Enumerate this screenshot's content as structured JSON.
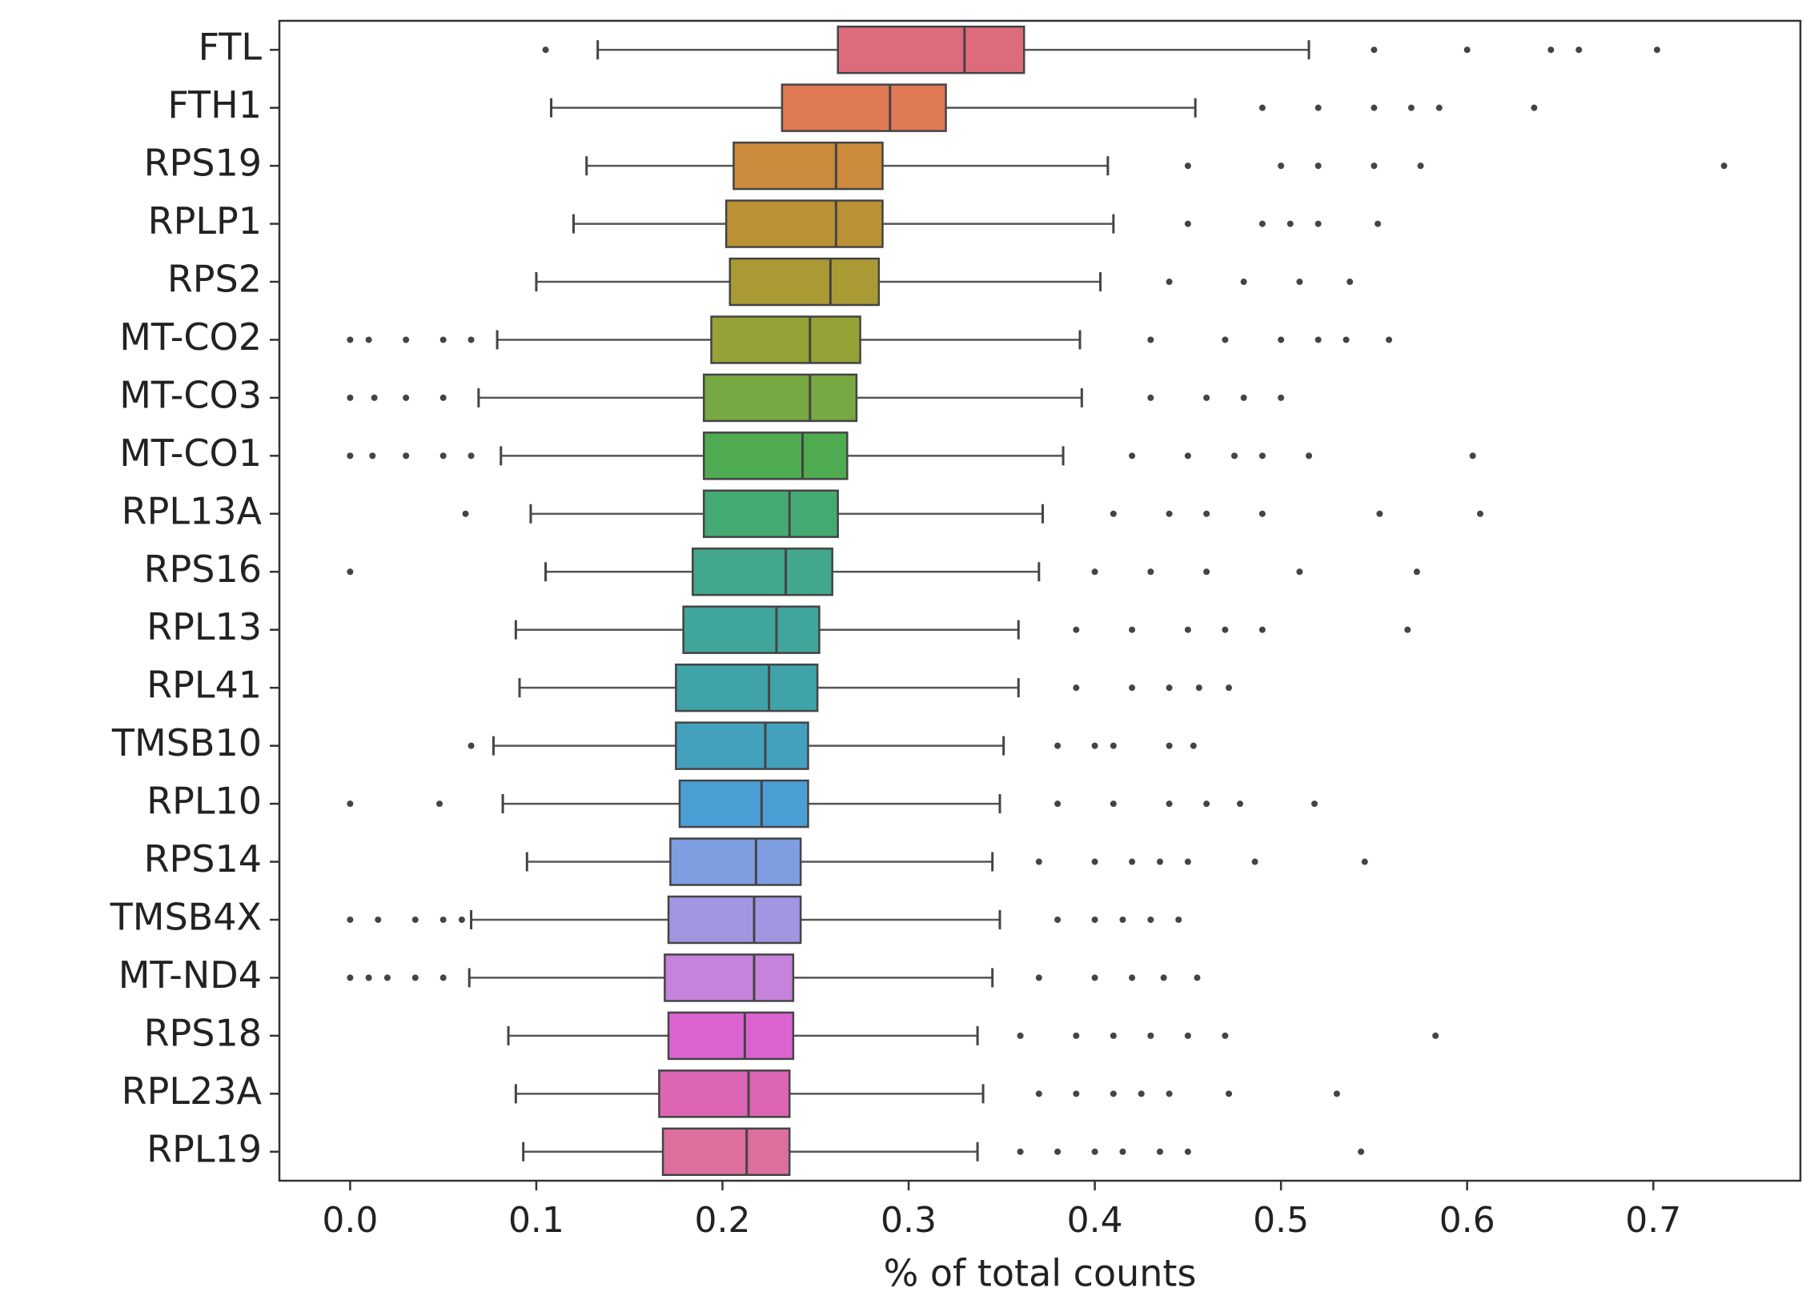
{
  "chart_data": {
    "type": "boxplot",
    "orientation": "horizontal",
    "xlabel": "% of total counts",
    "xlim": [
      -0.038,
      0.779
    ],
    "xticks": [
      {
        "value": 0,
        "label": "0.0"
      },
      0.1,
      0.2,
      0.3,
      0.4,
      0.5,
      0.6,
      0.7
    ],
    "categories": [
      "FTL",
      "FTH1",
      "RPS19",
      "RPLP1",
      "RPS2",
      "MT-CO2",
      "MT-CO3",
      "MT-CO1",
      "RPL13A",
      "RPS16",
      "RPL13",
      "RPL41",
      "TMSB10",
      "RPL10",
      "RPS14",
      "TMSB4X",
      "MT-ND4",
      "RPS18",
      "RPL23A",
      "RPL19"
    ],
    "colors": [
      "#dd6b7c",
      "#e07a55",
      "#cc8a3c",
      "#bb9135",
      "#a99a34",
      "#97a236",
      "#78a842",
      "#4eab52",
      "#45a974",
      "#42a78c",
      "#40a59a",
      "#40a3a9",
      "#44a1bd",
      "#4a9ed4",
      "#7f9ee2",
      "#a495e3",
      "#c583db",
      "#dc64d1",
      "#dc66b4",
      "#dc6f9e"
    ],
    "stats": [
      {
        "whislo": 0.133,
        "q1": 0.262,
        "med": 0.33,
        "q3": 0.362,
        "whishi": 0.515,
        "fliers": [
          0.105,
          0.55,
          0.6,
          0.645,
          0.66,
          0.702
        ]
      },
      {
        "whislo": 0.108,
        "q1": 0.232,
        "med": 0.29,
        "q3": 0.32,
        "whishi": 0.454,
        "fliers": [
          0.49,
          0.52,
          0.55,
          0.57,
          0.585,
          0.636
        ]
      },
      {
        "whislo": 0.127,
        "q1": 0.206,
        "med": 0.261,
        "q3": 0.286,
        "whishi": 0.407,
        "fliers": [
          0.45,
          0.5,
          0.52,
          0.55,
          0.575,
          0.738
        ]
      },
      {
        "whislo": 0.12,
        "q1": 0.202,
        "med": 0.261,
        "q3": 0.286,
        "whishi": 0.41,
        "fliers": [
          0.45,
          0.49,
          0.505,
          0.52,
          0.552
        ]
      },
      {
        "whislo": 0.1,
        "q1": 0.204,
        "med": 0.258,
        "q3": 0.284,
        "whishi": 0.403,
        "fliers": [
          0.44,
          0.48,
          0.51,
          0.537
        ]
      },
      {
        "whislo": 0.079,
        "q1": 0.194,
        "med": 0.247,
        "q3": 0.274,
        "whishi": 0.392,
        "fliers": [
          0.0,
          0.01,
          0.03,
          0.05,
          0.065,
          0.43,
          0.47,
          0.5,
          0.52,
          0.535,
          0.558
        ]
      },
      {
        "whislo": 0.069,
        "q1": 0.19,
        "med": 0.247,
        "q3": 0.272,
        "whishi": 0.393,
        "fliers": [
          0.0,
          0.013,
          0.03,
          0.05,
          0.43,
          0.46,
          0.48,
          0.5
        ]
      },
      {
        "whislo": 0.081,
        "q1": 0.19,
        "med": 0.243,
        "q3": 0.267,
        "whishi": 0.383,
        "fliers": [
          0.0,
          0.012,
          0.03,
          0.05,
          0.065,
          0.42,
          0.45,
          0.475,
          0.49,
          0.515,
          0.603
        ]
      },
      {
        "whislo": 0.097,
        "q1": 0.19,
        "med": 0.236,
        "q3": 0.262,
        "whishi": 0.372,
        "fliers": [
          0.062,
          0.41,
          0.44,
          0.46,
          0.49,
          0.553,
          0.607
        ]
      },
      {
        "whislo": 0.105,
        "q1": 0.184,
        "med": 0.234,
        "q3": 0.259,
        "whishi": 0.37,
        "fliers": [
          0.0,
          0.4,
          0.43,
          0.46,
          0.51,
          0.573
        ]
      },
      {
        "whislo": 0.089,
        "q1": 0.179,
        "med": 0.229,
        "q3": 0.252,
        "whishi": 0.359,
        "fliers": [
          0.39,
          0.42,
          0.45,
          0.47,
          0.49,
          0.568
        ]
      },
      {
        "whislo": 0.091,
        "q1": 0.175,
        "med": 0.225,
        "q3": 0.251,
        "whishi": 0.359,
        "fliers": [
          0.39,
          0.42,
          0.44,
          0.456,
          0.472
        ]
      },
      {
        "whislo": 0.077,
        "q1": 0.175,
        "med": 0.223,
        "q3": 0.246,
        "whishi": 0.351,
        "fliers": [
          0.065,
          0.38,
          0.4,
          0.41,
          0.44,
          0.453
        ]
      },
      {
        "whislo": 0.082,
        "q1": 0.177,
        "med": 0.221,
        "q3": 0.246,
        "whishi": 0.349,
        "fliers": [
          0.0,
          0.048,
          0.38,
          0.41,
          0.44,
          0.46,
          0.478,
          0.518
        ]
      },
      {
        "whislo": 0.095,
        "q1": 0.172,
        "med": 0.218,
        "q3": 0.242,
        "whishi": 0.345,
        "fliers": [
          0.37,
          0.4,
          0.42,
          0.435,
          0.45,
          0.486,
          0.545
        ]
      },
      {
        "whislo": 0.065,
        "q1": 0.171,
        "med": 0.217,
        "q3": 0.242,
        "whishi": 0.349,
        "fliers": [
          0.0,
          0.015,
          0.035,
          0.05,
          0.06,
          0.38,
          0.4,
          0.415,
          0.43,
          0.445
        ]
      },
      {
        "whislo": 0.064,
        "q1": 0.169,
        "med": 0.217,
        "q3": 0.238,
        "whishi": 0.345,
        "fliers": [
          0.0,
          0.01,
          0.02,
          0.035,
          0.05,
          0.37,
          0.4,
          0.42,
          0.437,
          0.455
        ]
      },
      {
        "whislo": 0.085,
        "q1": 0.171,
        "med": 0.212,
        "q3": 0.238,
        "whishi": 0.337,
        "fliers": [
          0.36,
          0.39,
          0.41,
          0.43,
          0.45,
          0.47,
          0.583
        ]
      },
      {
        "whislo": 0.089,
        "q1": 0.166,
        "med": 0.214,
        "q3": 0.236,
        "whishi": 0.34,
        "fliers": [
          0.37,
          0.39,
          0.41,
          0.425,
          0.44,
          0.472,
          0.53
        ]
      },
      {
        "whislo": 0.093,
        "q1": 0.168,
        "med": 0.213,
        "q3": 0.236,
        "whishi": 0.337,
        "fliers": [
          0.36,
          0.38,
          0.4,
          0.415,
          0.435,
          0.45,
          0.543
        ]
      }
    ]
  }
}
